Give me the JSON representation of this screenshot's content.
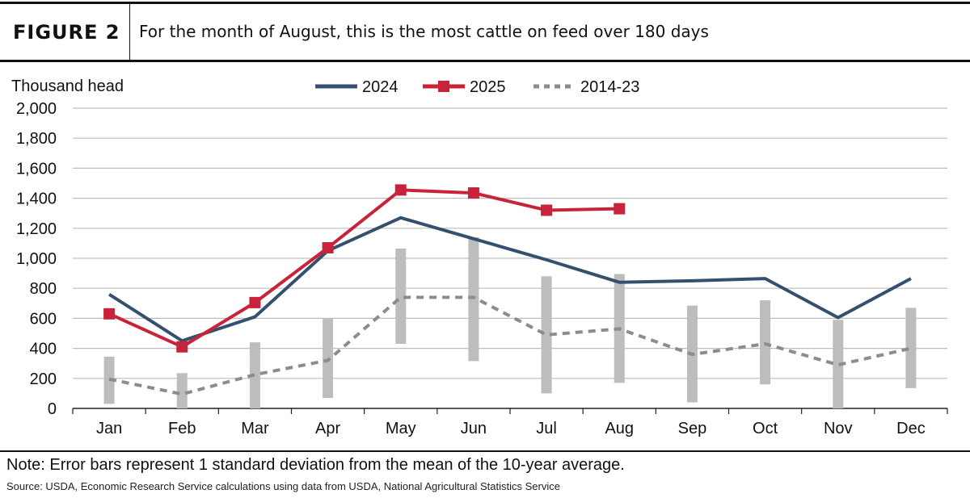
{
  "header": {
    "figure_label": "FIGURE 2",
    "title": "For the month of August, this is the most cattle on feed over 180 days"
  },
  "footer": {
    "note": "Note: Error bars represent 1 standard deviation from the mean of the 10-year average.",
    "source": "Source: USDA, Economic Research Service calculations using data from USDA, National Agricultural Statistics Service"
  },
  "colors": {
    "series_2024": "#35506e",
    "series_2025": "#c8233a",
    "series_avg": "#8c8c8c",
    "error_bar": "#bdbdbd",
    "grid": "#bdbdbd"
  },
  "chart_data": {
    "type": "line",
    "ylabel": "Thousand head",
    "ylim": [
      0,
      2000
    ],
    "yticks": [
      0,
      200,
      400,
      600,
      800,
      1000,
      1200,
      1400,
      1600,
      1800,
      2000
    ],
    "grid": true,
    "legend_position": "top-center",
    "categories": [
      "Jan",
      "Feb",
      "Mar",
      "Apr",
      "May",
      "Jun",
      "Jul",
      "Aug",
      "Sep",
      "Oct",
      "Nov",
      "Dec"
    ],
    "series": [
      {
        "name": "2024",
        "style": "solid",
        "values": [
          760,
          450,
          610,
          1050,
          1270,
          1130,
          990,
          840,
          850,
          865,
          605,
          865
        ]
      },
      {
        "name": "2025",
        "style": "solid-square-markers",
        "values": [
          630,
          410,
          705,
          1070,
          1455,
          1435,
          1320,
          1330,
          null,
          null,
          null,
          null
        ]
      },
      {
        "name": "2014-23",
        "style": "dashed",
        "values": [
          195,
          95,
          225,
          320,
          740,
          740,
          490,
          530,
          360,
          430,
          290,
          400
        ]
      }
    ],
    "error_bars": {
      "series": "2014-23",
      "low": [
        30,
        0,
        0,
        70,
        430,
        315,
        100,
        170,
        40,
        160,
        0,
        135
      ],
      "high": [
        345,
        235,
        440,
        600,
        1065,
        1140,
        880,
        895,
        685,
        720,
        590,
        670
      ]
    }
  }
}
